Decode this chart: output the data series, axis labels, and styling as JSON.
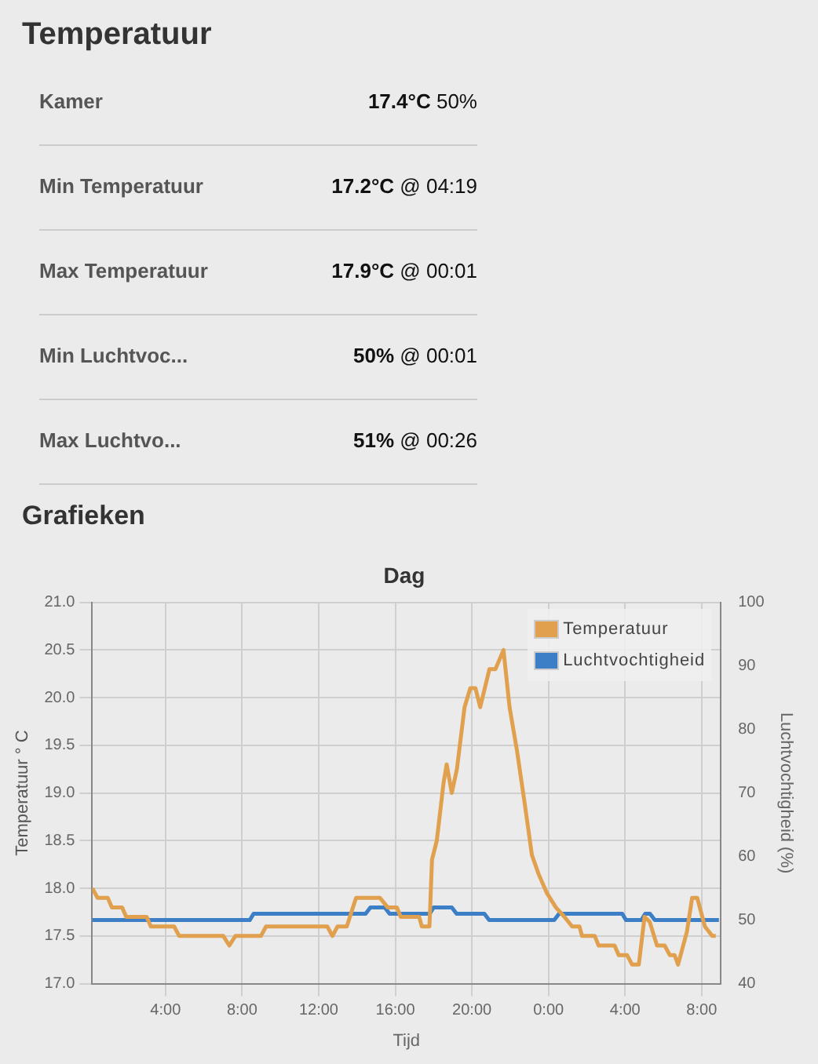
{
  "chart_data": [
    {
      "type": "other",
      "title": "Temperatuur",
      "subtitle": "Grafieken",
      "annotations": [
        "Kamer",
        "17.4°C 50%",
        "Min Temperatuur",
        "17.2°C @ 04:19",
        "Max Temperatuur",
        "17.9°C @ 00:01",
        "Min Luchtvoc...",
        "50% @ 00:01",
        "Max Luchtvo...",
        "51% @ 00:26"
      ]
    },
    {
      "type": "line",
      "title": "Dag",
      "xlabel": "Tijd",
      "ylabel": "Temperatuur ° C",
      "y2label": "Luchtvochtigheid (%)",
      "xlim": [
        "2000-01-01T00:10",
        "2000-01-02T09:00"
      ],
      "xticks": [
        {
          "value": "2000-01-01T04:00",
          "label": "4:00"
        },
        {
          "value": "2000-01-01T08:00",
          "label": "8:00"
        },
        {
          "value": "2000-01-01T12:00",
          "label": "12:00"
        },
        {
          "value": "2000-01-01T16:00",
          "label": "16:00"
        },
        {
          "value": "2000-01-01T20:00",
          "label": "20:00"
        },
        {
          "value": "2000-01-02T00:00",
          "label": "0:00"
        },
        {
          "value": "2000-01-02T04:00",
          "label": "4:00"
        },
        {
          "value": "2000-01-02T08:00",
          "label": "8:00"
        }
      ],
      "ylim": [
        17,
        21
      ],
      "yticks": [
        {
          "value": 17,
          "label": "17.0"
        },
        {
          "value": 17.5,
          "label": "17.5"
        },
        {
          "value": 18,
          "label": "18.0"
        },
        {
          "value": 18.5,
          "label": "18.5"
        },
        {
          "value": 19,
          "label": "19.0"
        },
        {
          "value": 19.5,
          "label": "19.5"
        },
        {
          "value": 20,
          "label": "20.0"
        },
        {
          "value": 20.5,
          "label": "20.5"
        },
        {
          "value": 21,
          "label": "21.0"
        }
      ],
      "y2lim": [
        40,
        100
      ],
      "y2ticks": [
        40,
        50,
        60,
        70,
        80,
        90,
        100
      ],
      "grid": true,
      "legend": "top right",
      "marker": "none",
      "line_style": "solid",
      "series": [
        {
          "name": "Temperatuur",
          "color": "#e0a04e",
          "axis": "y",
          "x": [
            "2000-01-01T00:11",
            "2000-01-01T00:27",
            "2000-01-01T00:59",
            "2000-01-01T01:12",
            "2000-01-01T01:44",
            "2000-01-01T01:57",
            "2000-01-01T03:01",
            "2000-01-01T03:14",
            "2000-01-01T04:27",
            "2000-01-01T04:43",
            "2000-01-01T07:01",
            "2000-01-01T07:20",
            "2000-01-01T07:39",
            "2000-01-01T08:59",
            "2000-01-01T09:15",
            "2000-01-01T12:27",
            "2000-01-01T12:43",
            "2000-01-01T12:59",
            "2000-01-01T13:28",
            "2000-01-01T13:57",
            "2000-01-01T15:12",
            "2000-01-01T15:36",
            "2000-01-01T16:05",
            "2000-01-01T16:17",
            "2000-01-01T16:56",
            "2000-01-01T17:15",
            "2000-01-01T17:23",
            "2000-01-01T17:47",
            "2000-01-01T17:55",
            "2000-01-01T18:10",
            "2000-01-01T18:31",
            "2000-01-01T18:41",
            "2000-01-01T18:57",
            "2000-01-01T19:13",
            "2000-01-01T19:37",
            "2000-01-01T19:55",
            "2000-01-01T20:11",
            "2000-01-01T20:26",
            "2000-01-01T20:55",
            "2000-01-01T21:14",
            "2000-01-01T21:39",
            "2000-01-01T21:58",
            "2000-01-01T22:21",
            "2000-01-01T22:45",
            "2000-01-01T23:08",
            "2000-01-01T23:29",
            "2000-01-01T23:55",
            "2000-01-02T00:23",
            "2000-01-02T00:50",
            "2000-01-02T01:14",
            "2000-01-02T01:37",
            "2000-01-02T01:45",
            "2000-01-02T02:25",
            "2000-01-02T02:37",
            "2000-01-02T03:27",
            "2000-01-02T03:40",
            "2000-01-02T04:06",
            "2000-01-02T04:22",
            "2000-01-02T04:43",
            "2000-01-02T05:01",
            "2000-01-02T05:17",
            "2000-01-02T05:40",
            "2000-01-02T06:04",
            "2000-01-02T06:20",
            "2000-01-02T06:35",
            "2000-01-02T06:46",
            "2000-01-02T07:14",
            "2000-01-02T07:30",
            "2000-01-02T07:46",
            "2000-01-02T08:10",
            "2000-01-02T08:33",
            "2000-01-02T08:44"
          ],
          "values": [
            18.0,
            17.9,
            17.9,
            17.8,
            17.8,
            17.7,
            17.7,
            17.6,
            17.6,
            17.5,
            17.5,
            17.4,
            17.5,
            17.5,
            17.6,
            17.6,
            17.5,
            17.6,
            17.6,
            17.9,
            17.9,
            17.8,
            17.8,
            17.7,
            17.7,
            17.7,
            17.6,
            17.6,
            18.3,
            18.5,
            19.1,
            19.3,
            19.0,
            19.25,
            19.9,
            20.1,
            20.1,
            19.9,
            20.3,
            20.3,
            20.5,
            19.9,
            19.45,
            18.9,
            18.35,
            18.15,
            17.95,
            17.8,
            17.7,
            17.6,
            17.6,
            17.5,
            17.5,
            17.4,
            17.4,
            17.3,
            17.3,
            17.2,
            17.2,
            17.7,
            17.65,
            17.4,
            17.4,
            17.3,
            17.3,
            17.2,
            17.55,
            17.9,
            17.9,
            17.6,
            17.5,
            17.5
          ]
        },
        {
          "name": "Luchtvochtigheid",
          "color": "#3d7fc6",
          "axis": "y2",
          "x": [
            "2000-01-01T00:10",
            "2000-01-01T08:24",
            "2000-01-01T08:36",
            "2000-01-01T14:27",
            "2000-01-01T14:42",
            "2000-01-01T15:27",
            "2000-01-01T15:42",
            "2000-01-01T17:48",
            "2000-01-01T18:00",
            "2000-01-01T18:57",
            "2000-01-01T19:12",
            "2000-01-01T20:39",
            "2000-01-01T20:54",
            "2000-01-02T00:18",
            "2000-01-02T00:33",
            "2000-01-02T03:51",
            "2000-01-02T04:03",
            "2000-01-02T04:51",
            "2000-01-02T05:03",
            "2000-01-02T05:18",
            "2000-01-02T05:33",
            "2000-01-02T08:54"
          ],
          "values": [
            50,
            50,
            51,
            51,
            52,
            52,
            51,
            51,
            52,
            52,
            51,
            51,
            50,
            50,
            51,
            51,
            50,
            50,
            51,
            51,
            50,
            50
          ]
        }
      ]
    }
  ]
}
